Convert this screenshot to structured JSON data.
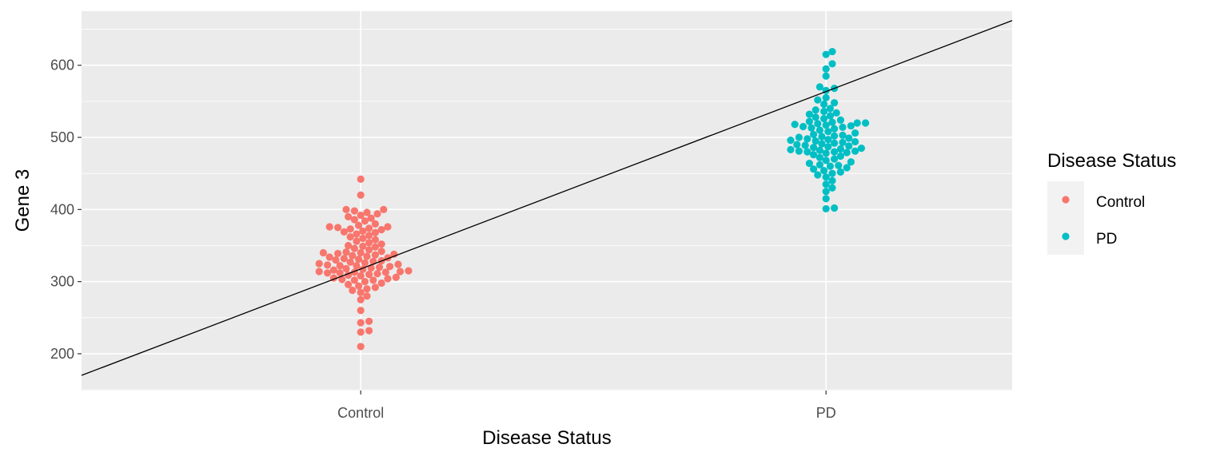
{
  "chart_data": {
    "type": "scatter",
    "xlabel": "Disease Status",
    "ylabel": "Gene 3",
    "categories": [
      "Control",
      "PD"
    ],
    "y_ticks": [
      200,
      300,
      400,
      500,
      600
    ],
    "ylim": [
      149,
      675
    ],
    "xlim": [
      0.4,
      2.4
    ],
    "grid": true,
    "legend": {
      "title": "Disease Status",
      "placement": "right"
    },
    "series": [
      {
        "name": "Control",
        "color": "#F8766D",
        "x": 1,
        "values": [
          442,
          420,
          400,
          400,
          398,
          396,
          394,
          392,
          390,
          388,
          386,
          384,
          380,
          378,
          376,
          376,
          375,
          374,
          373,
          372,
          370,
          369,
          368,
          366,
          364,
          362,
          360,
          358,
          356,
          354,
          352,
          350,
          349,
          348,
          346,
          344,
          342,
          341,
          340,
          340,
          339,
          338,
          337,
          336,
          335,
          334,
          333,
          332,
          331,
          330,
          329,
          328,
          327,
          326,
          325,
          324,
          323,
          322,
          322,
          321,
          320,
          319,
          318,
          317,
          316,
          315,
          314,
          314,
          313,
          313,
          312,
          312,
          311,
          310,
          309,
          308,
          306,
          305,
          304,
          303,
          302,
          302,
          300,
          298,
          296,
          294,
          292,
          290,
          288,
          285,
          280,
          275,
          260,
          245,
          243,
          232,
          230,
          210
        ]
      },
      {
        "name": "PD",
        "color": "#00BFC4",
        "x": 2,
        "values": [
          619,
          615,
          602,
          595,
          585,
          570,
          568,
          565,
          555,
          552,
          548,
          546,
          540,
          538,
          536,
          534,
          532,
          530,
          528,
          526,
          524,
          522,
          521,
          520,
          520,
          519,
          518,
          517,
          516,
          515,
          514,
          513,
          512,
          510,
          508,
          506,
          504,
          503,
          502,
          501,
          500,
          499,
          498,
          497,
          496,
          495,
          494,
          493,
          492,
          491,
          490,
          489,
          488,
          487,
          486,
          485,
          484,
          483,
          482,
          481,
          481,
          480,
          480,
          479,
          478,
          476,
          474,
          472,
          470,
          468,
          466,
          464,
          462,
          461,
          460,
          458,
          456,
          454,
          452,
          450,
          448,
          445,
          440,
          435,
          430,
          425,
          415,
          402,
          401
        ]
      }
    ],
    "trend_line": {
      "from": {
        "x": 0.4,
        "y": 170
      },
      "to": {
        "x": 2.4,
        "y": 662
      }
    }
  }
}
